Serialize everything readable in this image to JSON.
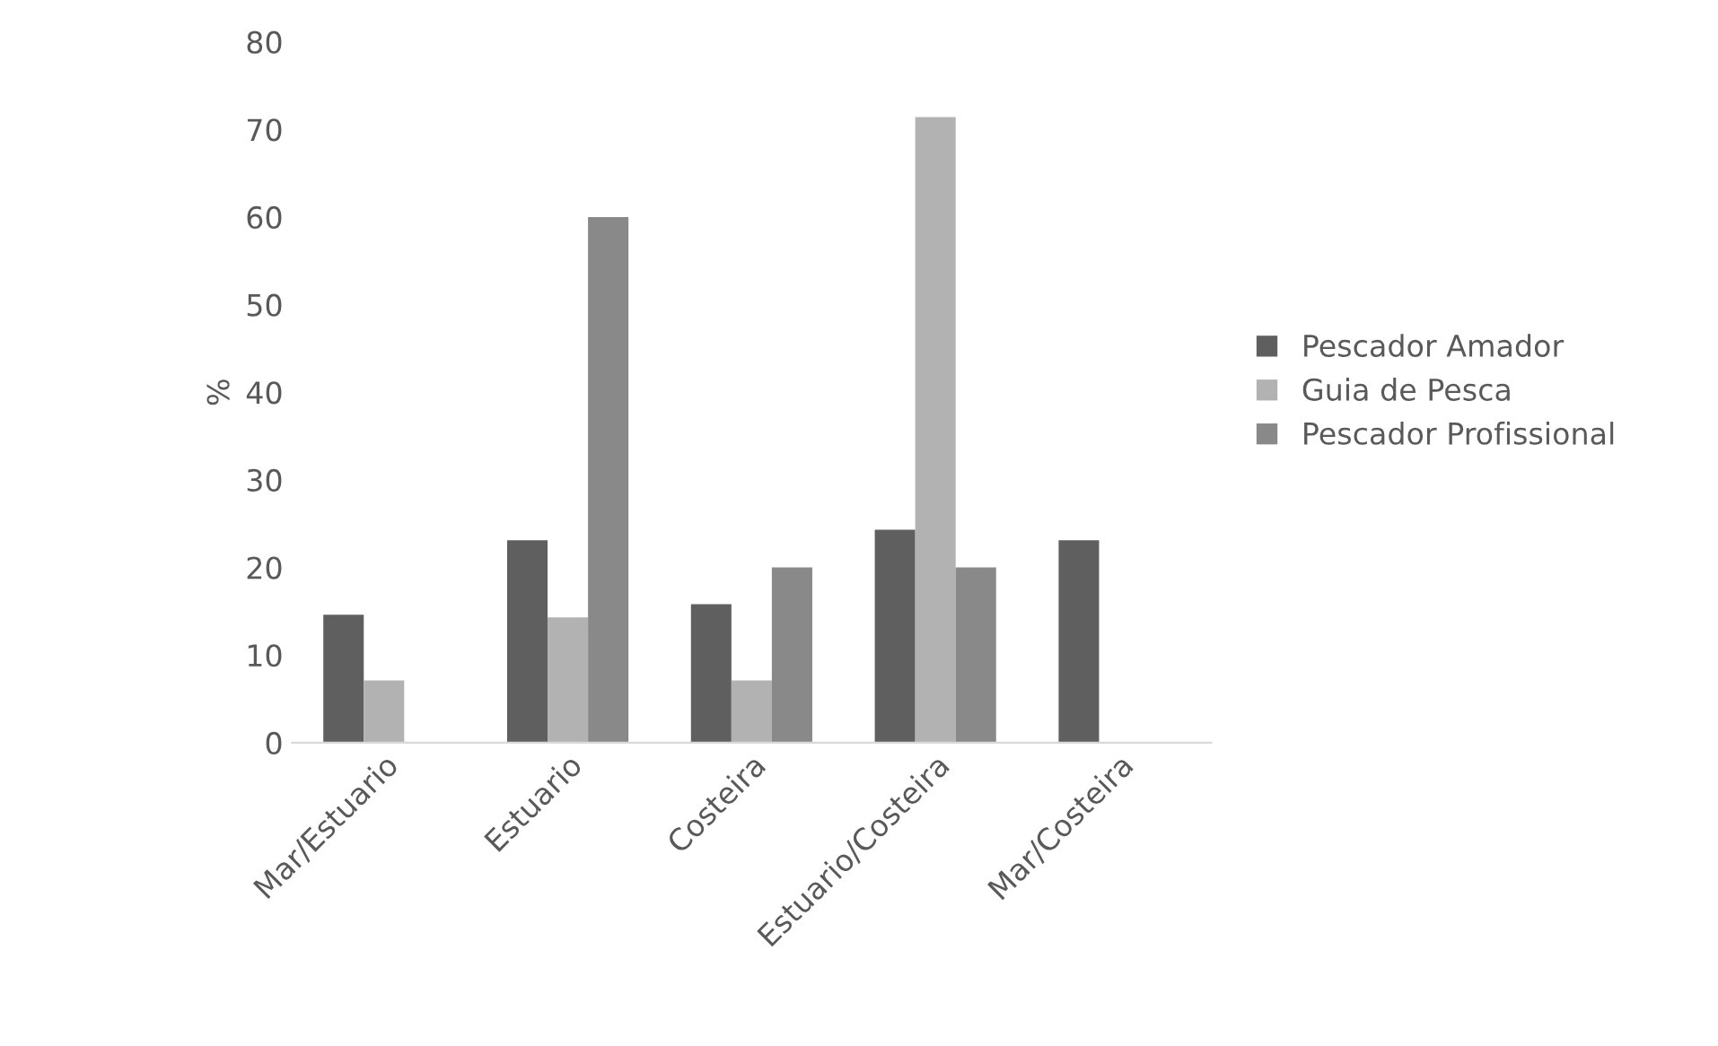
{
  "chart_data": {
    "type": "bar",
    "ylabel": "%",
    "categories": [
      "Mar/Estuario",
      "Estuario",
      "Costeira",
      "Estuario/Costeira",
      "Mar/Costeira"
    ],
    "series": [
      {
        "name": "Pescador Amador",
        "color": "#5f5f5f",
        "values": [
          14.6,
          23.1,
          15.8,
          24.3,
          23.1
        ]
      },
      {
        "name": "Guia de Pesca",
        "color": "#b2b2b2",
        "values": [
          7.1,
          14.3,
          7.1,
          71.4,
          0
        ]
      },
      {
        "name": "Pescador Profissional",
        "color": "#898989",
        "values": [
          0,
          60,
          20,
          20,
          0
        ]
      }
    ],
    "ylim": [
      0,
      80
    ],
    "yticks": [
      0,
      10,
      20,
      30,
      40,
      50,
      60,
      70,
      80
    ],
    "grid": false,
    "legend": "right"
  }
}
